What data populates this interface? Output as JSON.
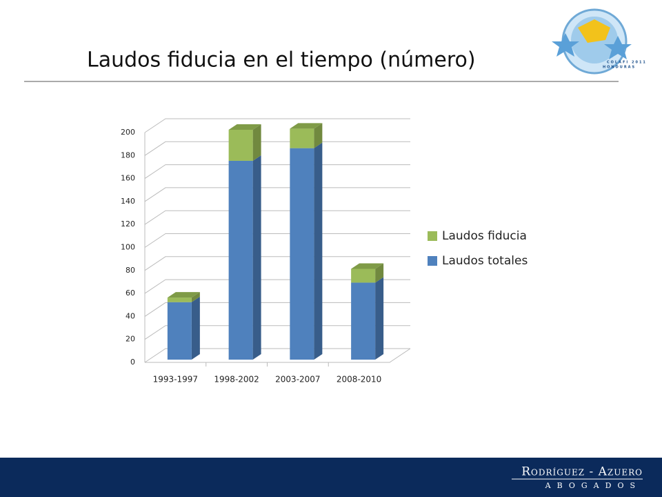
{
  "slide": {
    "title": "Laudos fiducia en el tiempo (número)",
    "logo": {
      "line1": "COLAFI 2011",
      "line2": "HONDURAS"
    },
    "footer": {
      "firm": "Rodríguez - Azuero",
      "subtitle": "ABOGADOS"
    }
  },
  "chart_data": {
    "type": "bar3d_stacked",
    "categories": [
      "1993-1997",
      "1998-2002",
      "2003-2007",
      "2008-2010"
    ],
    "series": [
      {
        "name": "Laudos totales",
        "color": "#4f81bd",
        "side": "#385d8a",
        "top": "#4573ad",
        "values": [
          50,
          173,
          184,
          67
        ]
      },
      {
        "name": "Laudos fiducia",
        "color": "#9bbb59",
        "side": "#71893f",
        "top": "#7f9b47",
        "values": [
          4,
          27,
          17,
          12
        ]
      }
    ],
    "ylim": [
      0,
      200
    ],
    "yticks": [
      0,
      20,
      40,
      60,
      80,
      100,
      120,
      140,
      160,
      180,
      200
    ],
    "grid": true,
    "legend": "right"
  }
}
